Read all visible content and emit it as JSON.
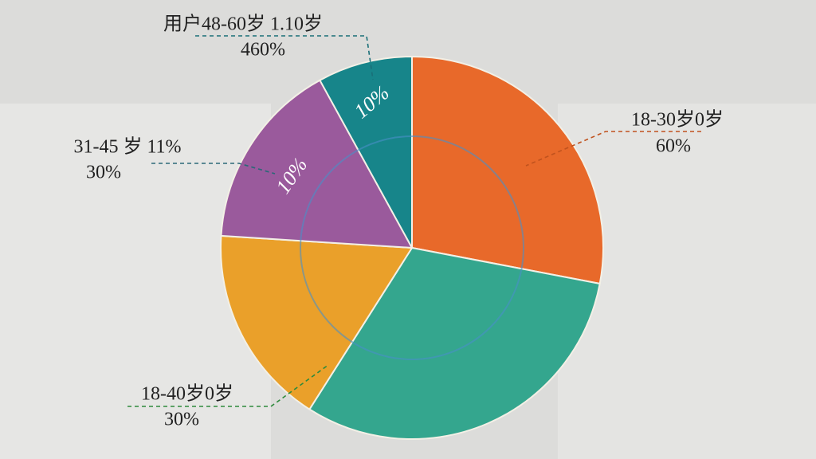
{
  "chart_data": {
    "type": "pie",
    "values": [
      28,
      31,
      17,
      16,
      8
    ],
    "colors": [
      "#e8692a",
      "#34a68e",
      "#eaa02a",
      "#9a5a9c",
      "#17858a"
    ],
    "annotations": [
      {
        "lines": [
          "用户48-60岁 1.10岁",
          "460%"
        ]
      },
      {
        "lines": [
          "18-30岁0岁",
          "60%"
        ]
      },
      {
        "lines": [
          "31-45 岁 11%",
          "30%"
        ]
      },
      {
        "lines": [
          "18-40岁0岁",
          "30%"
        ]
      }
    ],
    "inner_labels": [
      "10%",
      "10%"
    ]
  }
}
